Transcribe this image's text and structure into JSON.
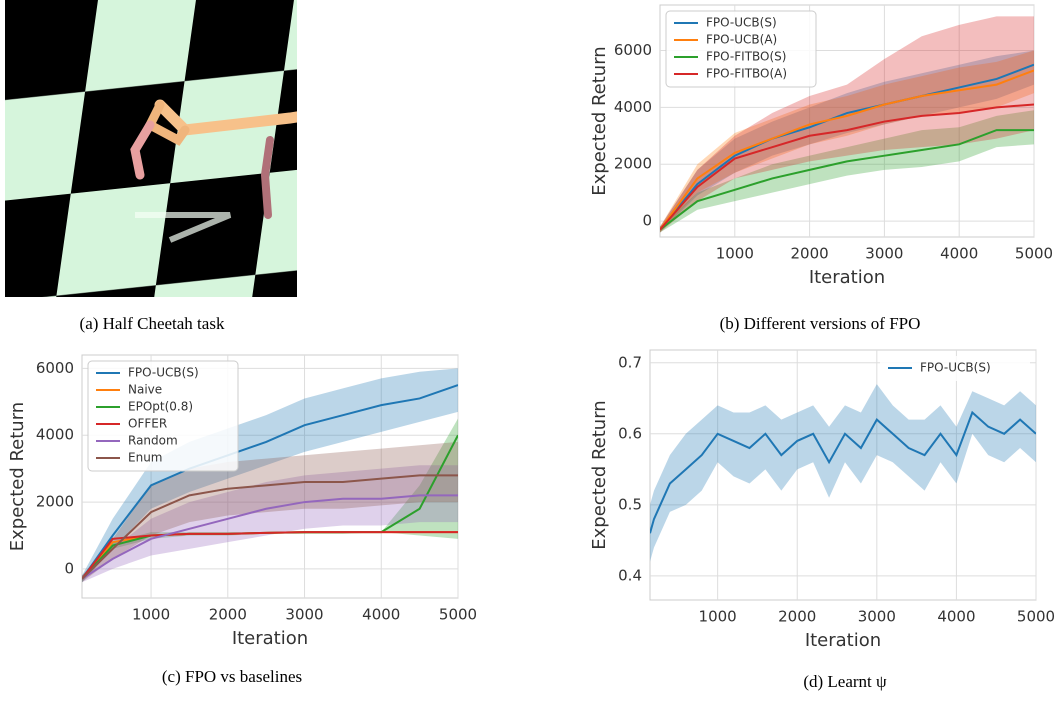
{
  "image_caption": "(a) Half Cheetah task",
  "chart_data": [
    {
      "type": "line",
      "caption": "(b) Different versions of FPO",
      "xlabel": "Iteration",
      "ylabel": "Expected Return",
      "x": [
        0,
        500,
        1000,
        1500,
        2000,
        2500,
        3000,
        3500,
        4000,
        4500,
        5000
      ],
      "xlim": [
        0,
        5000
      ],
      "ylim": [
        -560,
        7600
      ],
      "xticks": [
        1000,
        2000,
        3000,
        4000,
        5000
      ],
      "yticks": [
        0,
        2000,
        4000,
        6000
      ],
      "grid": true,
      "legend": "upper left",
      "series": [
        {
          "name": "FPO-UCB(S)",
          "color": "#1f77b4",
          "values": [
            -300,
            1300,
            2300,
            2900,
            3300,
            3800,
            4100,
            4400,
            4700,
            5000,
            5500
          ],
          "upper": [
            -200,
            1800,
            2900,
            3500,
            4000,
            4500,
            4900,
            5200,
            5500,
            5800,
            6000
          ],
          "lower": [
            -400,
            900,
            1700,
            2300,
            2700,
            3100,
            3400,
            3700,
            4000,
            4300,
            4800
          ]
        },
        {
          "name": "FPO-UCB(A)",
          "color": "#ff7f0e",
          "values": [
            -300,
            1500,
            2400,
            2900,
            3400,
            3700,
            4100,
            4400,
            4600,
            4800,
            5300
          ],
          "upper": [
            -200,
            2000,
            3100,
            3600,
            4100,
            4400,
            4800,
            5100,
            5400,
            5600,
            6000
          ],
          "lower": [
            -400,
            1000,
            1700,
            2200,
            2700,
            3000,
            3400,
            3700,
            3800,
            4000,
            4500
          ]
        },
        {
          "name": "FPO-FITBO(S)",
          "color": "#2ca02c",
          "values": [
            -300,
            700,
            1100,
            1500,
            1800,
            2100,
            2300,
            2500,
            2700,
            3200,
            3200
          ],
          "upper": [
            -200,
            1000,
            1500,
            2000,
            2300,
            2600,
            2900,
            3200,
            3300,
            3700,
            3900
          ],
          "lower": [
            -400,
            400,
            700,
            1000,
            1300,
            1600,
            1800,
            1900,
            2100,
            2600,
            2700
          ]
        },
        {
          "name": "FPO-FITBO(A)",
          "color": "#d62728",
          "values": [
            -300,
            1200,
            2200,
            2600,
            3000,
            3200,
            3500,
            3700,
            3800,
            4000,
            4100
          ],
          "upper": [
            -200,
            1800,
            3000,
            3800,
            4400,
            4800,
            5700,
            6500,
            6900,
            7200,
            7200
          ],
          "lower": [
            -400,
            700,
            1500,
            1800,
            2100,
            2300,
            2500,
            2600,
            2700,
            2900,
            3200
          ]
        }
      ]
    },
    {
      "type": "line",
      "caption": "(c) FPO vs baselines",
      "xlabel": "Iteration",
      "ylabel": "Expected Return",
      "x": [
        100,
        500,
        1000,
        1500,
        2000,
        2500,
        3000,
        3500,
        4000,
        4500,
        5000
      ],
      "xlim": [
        100,
        5000
      ],
      "ylim": [
        -870,
        6400
      ],
      "xticks": [
        1000,
        2000,
        3000,
        4000,
        5000
      ],
      "yticks": [
        0,
        2000,
        4000,
        6000
      ],
      "grid": true,
      "legend": "upper left",
      "series": [
        {
          "name": "FPO-UCB(S)",
          "color": "#1f77b4",
          "values": [
            -300,
            1000,
            2500,
            3000,
            3400,
            3800,
            4300,
            4600,
            4900,
            5100,
            5500
          ],
          "upper": [
            -200,
            1500,
            3200,
            3800,
            4200,
            4600,
            5100,
            5400,
            5700,
            5900,
            6000
          ],
          "lower": [
            -400,
            600,
            1800,
            2300,
            2700,
            3100,
            3500,
            3800,
            4100,
            4400,
            4700
          ]
        },
        {
          "name": "Naive",
          "color": "#ff7f0e",
          "values": [
            -300,
            800,
            1000,
            1050,
            1050,
            1080,
            1100,
            1100,
            1100,
            1100,
            1100
          ]
        },
        {
          "name": "EPOpt(0.8)",
          "color": "#2ca02c",
          "values": [
            -300,
            700,
            1000,
            1050,
            1050,
            1080,
            1100,
            1100,
            1100,
            1800,
            4000
          ],
          "upper": [
            -200,
            800,
            1100,
            1100,
            1100,
            1100,
            1100,
            1100,
            1100,
            2500,
            4500
          ],
          "lower": [
            -400,
            600,
            900,
            1000,
            1000,
            1050,
            1050,
            1050,
            1100,
            1000,
            900
          ]
        },
        {
          "name": "OFFER",
          "color": "#d62728",
          "values": [
            -300,
            900,
            1000,
            1050,
            1050,
            1080,
            1100,
            1100,
            1100,
            1100,
            1100
          ]
        },
        {
          "name": "Random",
          "color": "#9467bd",
          "values": [
            -300,
            300,
            900,
            1200,
            1500,
            1800,
            2000,
            2100,
            2100,
            2200,
            2200
          ],
          "upper": [
            -200,
            600,
            1500,
            2000,
            2300,
            2600,
            2800,
            2900,
            3000,
            3100,
            3100
          ],
          "lower": [
            -400,
            0,
            400,
            600,
            800,
            1000,
            1200,
            1300,
            1300,
            1400,
            1400
          ]
        },
        {
          "name": "Enum",
          "color": "#8c564b",
          "values": [
            -300,
            600,
            1700,
            2200,
            2400,
            2500,
            2600,
            2600,
            2700,
            2800,
            2800
          ],
          "upper": [
            -200,
            900,
            2500,
            3000,
            3200,
            3300,
            3400,
            3500,
            3600,
            3700,
            3800
          ],
          "lower": [
            -400,
            300,
            1000,
            1400,
            1600,
            1700,
            1800,
            1800,
            1900,
            2000,
            2000
          ]
        }
      ]
    },
    {
      "type": "line",
      "caption": "(d) Learnt ψ",
      "xlabel": "Iteration",
      "ylabel": "Expected Return",
      "x": [
        150,
        200,
        400,
        600,
        800,
        1000,
        1200,
        1400,
        1600,
        1800,
        2000,
        2200,
        2400,
        2600,
        2800,
        3000,
        3200,
        3400,
        3600,
        3800,
        4000,
        4200,
        4400,
        4600,
        4800,
        5000
      ],
      "xlim": [
        150,
        5000
      ],
      "ylim": [
        0.366,
        0.718
      ],
      "xticks": [
        1000,
        2000,
        3000,
        4000,
        5000
      ],
      "yticks": [
        0.4,
        0.5,
        0.6,
        0.7
      ],
      "grid": true,
      "legend": "upper right",
      "series": [
        {
          "name": "FPO-UCB(S)",
          "color": "#1f77b4",
          "values": [
            0.46,
            0.48,
            0.53,
            0.55,
            0.57,
            0.6,
            0.59,
            0.58,
            0.6,
            0.57,
            0.59,
            0.6,
            0.56,
            0.6,
            0.58,
            0.62,
            0.6,
            0.58,
            0.57,
            0.6,
            0.57,
            0.63,
            0.61,
            0.6,
            0.62,
            0.6
          ],
          "upper": [
            0.5,
            0.52,
            0.57,
            0.6,
            0.62,
            0.64,
            0.63,
            0.63,
            0.64,
            0.62,
            0.63,
            0.64,
            0.61,
            0.64,
            0.63,
            0.67,
            0.64,
            0.62,
            0.62,
            0.64,
            0.61,
            0.66,
            0.65,
            0.64,
            0.66,
            0.64
          ],
          "lower": [
            0.42,
            0.44,
            0.49,
            0.5,
            0.52,
            0.56,
            0.54,
            0.53,
            0.55,
            0.52,
            0.55,
            0.56,
            0.51,
            0.56,
            0.53,
            0.57,
            0.56,
            0.54,
            0.52,
            0.56,
            0.53,
            0.6,
            0.57,
            0.56,
            0.58,
            0.56
          ]
        }
      ]
    }
  ]
}
